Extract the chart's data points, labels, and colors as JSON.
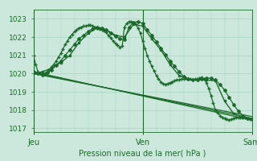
{
  "title": "",
  "xlabel": "Pression niveau de la mer( hPa )",
  "ylabel": "",
  "bg_color": "#cce8dc",
  "grid_color": "#a8d4c4",
  "line_color": "#1a6b2a",
  "ylim": [
    1016.8,
    1023.5
  ],
  "xlim": [
    0,
    48
  ],
  "yticks": [
    1017,
    1018,
    1019,
    1020,
    1021,
    1022,
    1023
  ],
  "xtick_positions": [
    0,
    24,
    48
  ],
  "xtick_labels": [
    "Jeu",
    "Ven",
    "Sam"
  ],
  "vlines": [
    0,
    24,
    48
  ],
  "series": [
    {
      "x": [
        0,
        0.5,
        1,
        1.5,
        2,
        2.5,
        3,
        3.5,
        4,
        4.5,
        5,
        5.5,
        6,
        6.5,
        7,
        7.5,
        8,
        8.5,
        9,
        9.5,
        10,
        10.5,
        11,
        11.5,
        12,
        12.5,
        13,
        13.5,
        14,
        14.5,
        15,
        15.5,
        16,
        16.5,
        17,
        17.5,
        18,
        18.5,
        19,
        19.5,
        20,
        20.5,
        21,
        21.5,
        22,
        22.5,
        23,
        23.5,
        24,
        24.5,
        25,
        25.5,
        26,
        26.5,
        27,
        27.5,
        28,
        28.5,
        29,
        29.5,
        30,
        30.5,
        31,
        31.5,
        32,
        32.5,
        33,
        33.5,
        34,
        34.5,
        35,
        35.5,
        36,
        36.5,
        37,
        37.5,
        38,
        38.5,
        39,
        39.5,
        40,
        40.5,
        41,
        41.5,
        42,
        42.5,
        43,
        43.5,
        44,
        44.5,
        45,
        45.5,
        46,
        46.5,
        47,
        47.5,
        48
      ],
      "y": [
        1021.0,
        1020.5,
        1020.1,
        1020.0,
        1019.95,
        1020.0,
        1020.1,
        1020.2,
        1020.35,
        1020.5,
        1020.7,
        1020.9,
        1021.1,
        1021.35,
        1021.6,
        1021.8,
        1022.0,
        1022.15,
        1022.3,
        1022.4,
        1022.5,
        1022.55,
        1022.6,
        1022.6,
        1022.65,
        1022.65,
        1022.6,
        1022.55,
        1022.5,
        1022.45,
        1022.4,
        1022.35,
        1022.25,
        1022.1,
        1021.95,
        1021.8,
        1021.65,
        1021.55,
        1021.45,
        1021.5,
        1022.55,
        1022.75,
        1022.85,
        1022.85,
        1022.8,
        1022.7,
        1022.5,
        1022.2,
        1021.8,
        1021.4,
        1021.0,
        1020.7,
        1020.4,
        1020.15,
        1019.9,
        1019.7,
        1019.55,
        1019.45,
        1019.4,
        1019.45,
        1019.5,
        1019.55,
        1019.6,
        1019.65,
        1019.65,
        1019.7,
        1019.7,
        1019.75,
        1019.7,
        1019.7,
        1019.65,
        1019.7,
        1019.7,
        1019.75,
        1019.8,
        1019.7,
        1019.5,
        1019.2,
        1018.8,
        1018.4,
        1018.0,
        1017.85,
        1017.7,
        1017.6,
        1017.55,
        1017.5,
        1017.45,
        1017.5,
        1017.55,
        1017.6,
        1017.6,
        1017.6,
        1017.6,
        1017.6,
        1017.55,
        1017.5,
        1017.5
      ],
      "marker": "+",
      "lw": 0.9,
      "ms": 3.5
    },
    {
      "x": [
        0,
        1,
        2,
        3,
        4,
        5,
        6,
        7,
        8,
        9,
        10,
        11,
        12,
        13,
        14,
        15,
        16,
        17,
        18,
        19,
        20,
        21,
        22,
        23,
        24,
        25,
        26,
        27,
        28,
        29,
        30,
        31,
        32,
        33,
        34,
        35,
        36,
        37,
        38,
        39,
        40,
        41,
        42,
        43,
        44,
        45,
        46,
        47,
        48
      ],
      "y": [
        1020.1,
        1020.0,
        1019.95,
        1020.05,
        1020.2,
        1020.45,
        1020.7,
        1021.0,
        1021.3,
        1021.6,
        1021.9,
        1022.1,
        1022.3,
        1022.45,
        1022.55,
        1022.5,
        1022.4,
        1022.2,
        1022.05,
        1021.9,
        1021.85,
        1022.55,
        1022.8,
        1022.85,
        1022.75,
        1022.4,
        1022.1,
        1021.75,
        1021.4,
        1021.05,
        1020.7,
        1020.4,
        1020.1,
        1019.85,
        1019.7,
        1019.65,
        1019.65,
        1019.7,
        1019.75,
        1019.75,
        1019.65,
        1019.4,
        1019.1,
        1018.7,
        1018.3,
        1017.95,
        1017.7,
        1017.55,
        1017.5
      ],
      "marker": "D",
      "lw": 0.9,
      "ms": 2.0
    },
    {
      "x": [
        0,
        2,
        4,
        6,
        8,
        10,
        12,
        14,
        16,
        18,
        20,
        22,
        24,
        26,
        28,
        30,
        32,
        34,
        36,
        38,
        40,
        42,
        44,
        46,
        48
      ],
      "y": [
        1020.0,
        1020.1,
        1020.3,
        1020.6,
        1021.0,
        1021.7,
        1022.2,
        1022.5,
        1022.4,
        1022.1,
        1022.0,
        1022.7,
        1022.6,
        1021.9,
        1021.3,
        1020.5,
        1019.9,
        1019.7,
        1019.65,
        1019.65,
        1019.6,
        1018.5,
        1017.8,
        1017.6,
        1017.5
      ],
      "marker": "s",
      "lw": 1.0,
      "ms": 2.0
    },
    {
      "x": [
        0,
        48
      ],
      "y": [
        1020.05,
        1017.55
      ],
      "marker": null,
      "lw": 0.9,
      "ms": 0,
      "linestyle": "-"
    },
    {
      "x": [
        0,
        48
      ],
      "y": [
        1020.0,
        1017.65
      ],
      "marker": null,
      "lw": 0.9,
      "ms": 0,
      "linestyle": "-"
    },
    {
      "x": [
        0,
        48
      ],
      "y": [
        1020.1,
        1017.45
      ],
      "marker": null,
      "lw": 0.9,
      "ms": 0,
      "linestyle": "-"
    }
  ]
}
